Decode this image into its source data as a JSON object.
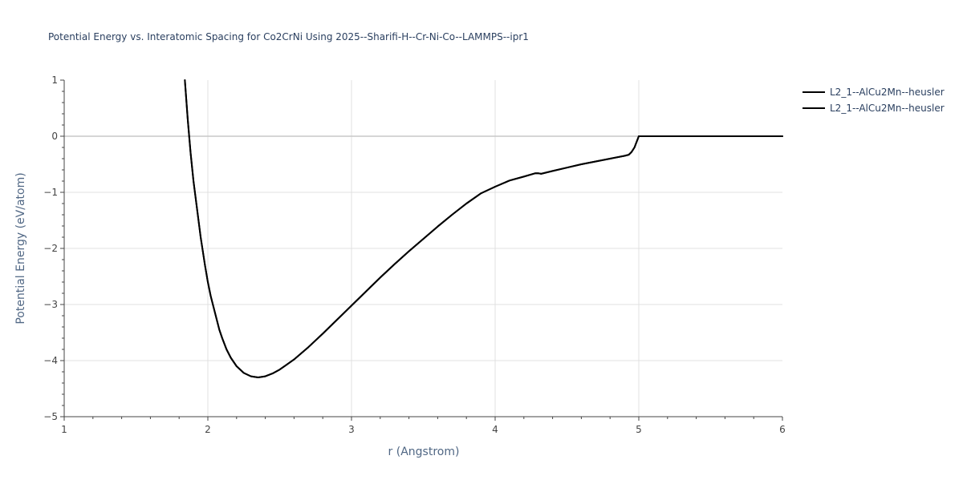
{
  "chart_data": {
    "type": "line",
    "title": "Potential Energy vs. Interatomic Spacing for Co2CrNi Using 2025--Sharifi-H--Cr-Ni-Co--LAMMPS--ipr1",
    "xlabel": "r (Angstrom)",
    "ylabel": "Potential Energy (eV/atom)",
    "xlim": [
      1,
      6
    ],
    "ylim": [
      -5,
      1
    ],
    "x_ticks": [
      1,
      2,
      3,
      4,
      5,
      6
    ],
    "y_ticks": [
      1,
      0,
      -1,
      -2,
      -3,
      -4,
      -5
    ],
    "x_tick_labels": [
      "1",
      "2",
      "3",
      "4",
      "5",
      "6"
    ],
    "y_tick_labels": [
      "1",
      "0",
      "−1",
      "−2",
      "−3",
      "−4",
      "−5"
    ],
    "grid": true,
    "legend_position": "top-right",
    "line_color": "#000000",
    "series": [
      {
        "name": "L2_1--AlCu2Mn--heusler",
        "x": [
          1.84,
          1.86,
          1.88,
          1.9,
          1.92,
          1.95,
          1.98,
          2.0,
          2.02,
          2.05,
          2.08,
          2.1,
          2.13,
          2.16,
          2.2,
          2.25,
          2.3,
          2.35,
          2.4,
          2.45,
          2.5,
          2.55,
          2.6,
          2.7,
          2.8,
          2.9,
          3.0,
          3.1,
          3.2,
          3.3,
          3.4,
          3.5,
          3.6,
          3.7,
          3.8,
          3.9,
          4.0,
          4.1,
          4.2,
          4.28,
          4.3,
          4.32,
          4.4,
          4.5,
          4.6,
          4.7,
          4.8,
          4.9,
          4.93,
          4.95,
          4.97,
          5.0,
          5.2,
          5.5,
          6.0
        ],
        "y": [
          1.0,
          0.3,
          -0.3,
          -0.8,
          -1.2,
          -1.8,
          -2.3,
          -2.6,
          -2.85,
          -3.15,
          -3.45,
          -3.6,
          -3.8,
          -3.95,
          -4.1,
          -4.22,
          -4.28,
          -4.3,
          -4.28,
          -4.23,
          -4.16,
          -4.07,
          -3.98,
          -3.76,
          -3.52,
          -3.27,
          -3.02,
          -2.77,
          -2.52,
          -2.28,
          -2.05,
          -1.83,
          -1.61,
          -1.4,
          -1.2,
          -1.02,
          -0.9,
          -0.79,
          -0.72,
          -0.66,
          -0.66,
          -0.67,
          -0.62,
          -0.56,
          -0.5,
          -0.45,
          -0.4,
          -0.35,
          -0.33,
          -0.28,
          -0.2,
          0.0,
          0.0,
          0.0,
          0.0
        ]
      },
      {
        "name": "L2_1--AlCu2Mn--heusler",
        "x": [
          1.84,
          1.86,
          1.88,
          1.9,
          1.92,
          1.95,
          1.98,
          2.0,
          2.02,
          2.05,
          2.08,
          2.1,
          2.13,
          2.16,
          2.2,
          2.25,
          2.3,
          2.35,
          2.4,
          2.45,
          2.5,
          2.55,
          2.6,
          2.7,
          2.8,
          2.9,
          3.0,
          3.1,
          3.2,
          3.3,
          3.4,
          3.5,
          3.6,
          3.7,
          3.8,
          3.9,
          4.0,
          4.1,
          4.2,
          4.28,
          4.3,
          4.32,
          4.4,
          4.5,
          4.6,
          4.7,
          4.8,
          4.9,
          4.93,
          4.95,
          4.97,
          5.0,
          5.2,
          5.5,
          6.0
        ],
        "y": [
          1.0,
          0.3,
          -0.3,
          -0.8,
          -1.2,
          -1.8,
          -2.3,
          -2.6,
          -2.85,
          -3.15,
          -3.45,
          -3.6,
          -3.8,
          -3.95,
          -4.1,
          -4.22,
          -4.28,
          -4.3,
          -4.28,
          -4.23,
          -4.16,
          -4.07,
          -3.98,
          -3.76,
          -3.52,
          -3.27,
          -3.02,
          -2.77,
          -2.52,
          -2.28,
          -2.05,
          -1.83,
          -1.61,
          -1.4,
          -1.2,
          -1.02,
          -0.9,
          -0.79,
          -0.72,
          -0.66,
          -0.66,
          -0.67,
          -0.62,
          -0.56,
          -0.5,
          -0.45,
          -0.4,
          -0.35,
          -0.33,
          -0.28,
          -0.2,
          0.0,
          0.0,
          0.0,
          0.0
        ]
      }
    ]
  }
}
